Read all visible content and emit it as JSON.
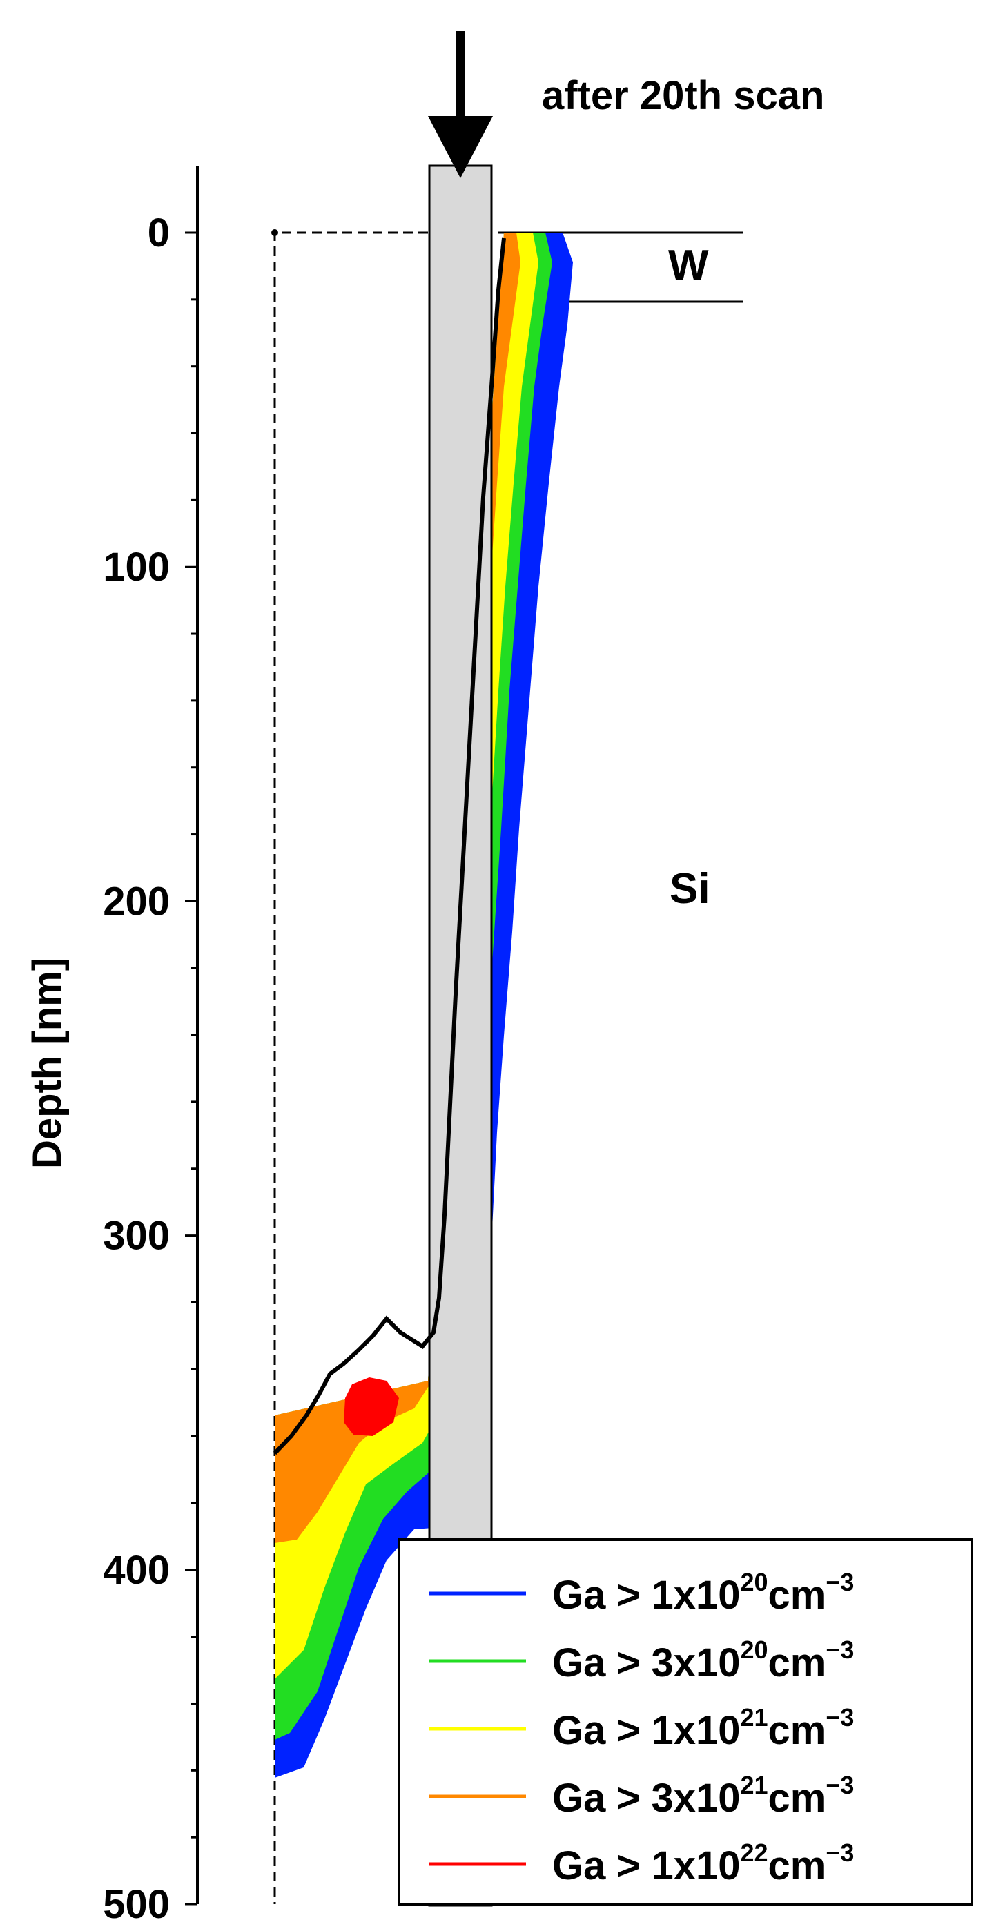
{
  "chart_data": {
    "type": "area",
    "title": "after 20th scan",
    "ylabel": "Depth [nm]",
    "xlabel": "",
    "ylim": [
      0,
      500
    ],
    "y_inverted": true,
    "yticks": [
      0,
      100,
      200,
      300,
      400,
      500
    ],
    "ytick_labels": [
      "0",
      "100",
      "200",
      "300",
      "400",
      "500"
    ],
    "grid": false,
    "legend_position": "bottom-right",
    "region_labels": [
      "W",
      "Si"
    ],
    "legend_prefix": "Ga > ",
    "legend_unit": "cm",
    "legend_exp_unit": "−3",
    "series": [
      {
        "label_mantissa": "1x10",
        "label_exp": "20",
        "color": "#0022ff"
      },
      {
        "label_mantissa": "3x10",
        "label_exp": "20",
        "color": "#22dd22"
      },
      {
        "label_mantissa": "1x10",
        "label_exp": "21",
        "color": "#ffff00"
      },
      {
        "label_mantissa": "3x10",
        "label_exp": "21",
        "color": "#ff8800"
      },
      {
        "label_mantissa": "1x10",
        "label_exp": "22",
        "color": "#ff0000"
      }
    ],
    "colors": {
      "beam": "#d9d9d9",
      "outline": "#000000"
    }
  }
}
